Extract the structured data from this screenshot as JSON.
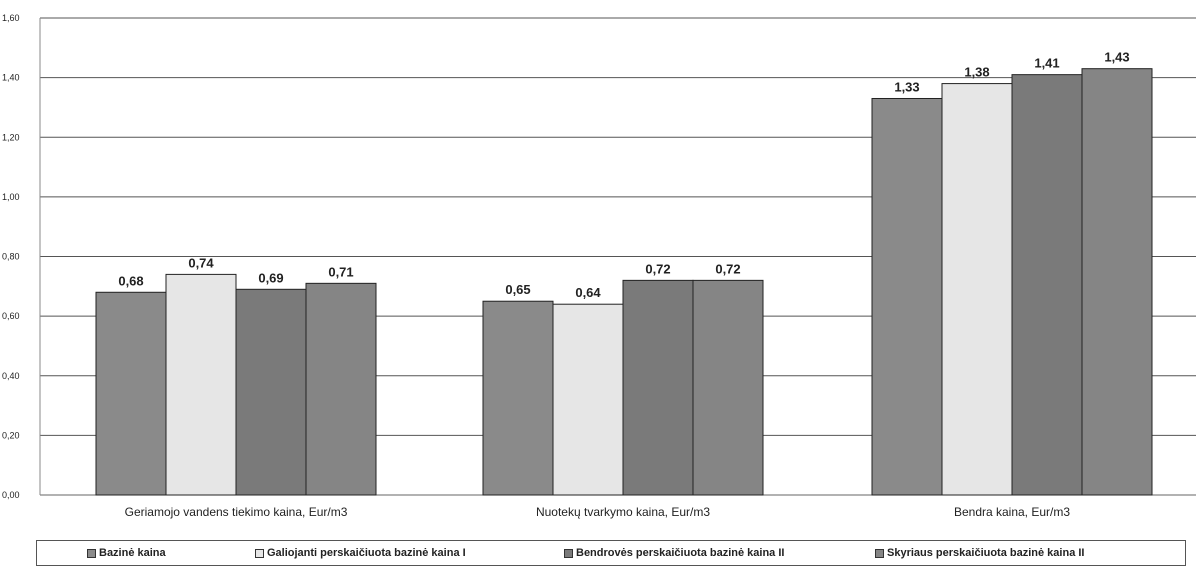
{
  "chart_data": {
    "type": "bar",
    "categories": [
      "Geriamojo vandens tiekimo kaina, Eur/m3",
      "Nuotekų tvarkymo kaina, Eur/m3",
      "Bendra kaina, Eur/m3"
    ],
    "series": [
      {
        "name": "Bazinė kaina",
        "values": [
          0.68,
          0.65,
          1.33
        ],
        "color": "#8a8a8a"
      },
      {
        "name": "Galiojanti perskaičiuota bazinė kaina I",
        "values": [
          0.74,
          0.64,
          1.38
        ],
        "color": "#e6e6e6"
      },
      {
        "name": "Bendrovės perskaičiuota bazinė kaina II",
        "values": [
          0.69,
          0.72,
          1.41
        ],
        "color": "#7a7a7a"
      },
      {
        "name": "Skyriaus perskaičiuota bazinė kaina II",
        "values": [
          0.71,
          0.72,
          1.43
        ],
        "color": "#858585"
      }
    ],
    "data_labels": [
      [
        "0,68",
        "0,74",
        "0,69",
        "0,71"
      ],
      [
        "0,65",
        "0,64",
        "0,72",
        "0,72"
      ],
      [
        "1,33",
        "1,38",
        "1,41",
        "1,43"
      ]
    ],
    "y_ticks": [
      "0,00",
      "0,20",
      "0,40",
      "0,60",
      "0,80",
      "1,00",
      "1,20",
      "1,40",
      "1,60"
    ],
    "ylim": [
      0,
      1.6
    ],
    "grid": true,
    "legend_position": "bottom"
  }
}
